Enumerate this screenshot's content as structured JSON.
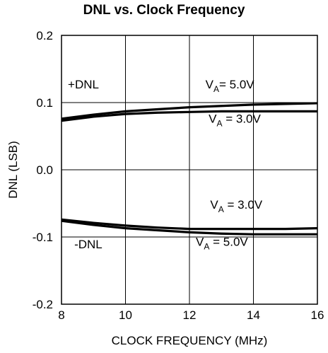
{
  "chart_data": {
    "type": "line",
    "title": "DNL vs. Clock Frequency",
    "xlabel": "CLOCK FREQUENCY (MHz)",
    "ylabel": "DNL (LSB)",
    "xlim": [
      8,
      16
    ],
    "ylim": [
      -0.2,
      0.2
    ],
    "x_ticks": [
      8,
      10,
      12,
      14,
      16
    ],
    "x_tick_labels": [
      "8",
      "10",
      "12",
      "14",
      "16"
    ],
    "y_ticks": [
      0.2,
      0.1,
      0.0,
      -0.1,
      -0.2
    ],
    "y_tick_labels": [
      "0.2",
      "0.1",
      "0.0",
      "-0.1",
      "-0.2"
    ],
    "grid": true,
    "series": [
      {
        "x": [
          8,
          9,
          10,
          11,
          12,
          13,
          14,
          15,
          16
        ],
        "y": [
          0.076,
          0.082,
          0.087,
          0.09,
          0.093,
          0.095,
          0.097,
          0.098,
          0.099
        ]
      },
      {
        "x": [
          8,
          9,
          10,
          11,
          12,
          13,
          14,
          15,
          16
        ],
        "y": [
          0.073,
          0.079,
          0.083,
          0.085,
          0.086,
          0.087,
          0.087,
          0.087,
          0.087
        ]
      },
      {
        "x": [
          8,
          9,
          10,
          11,
          12,
          13,
          14,
          15,
          16
        ],
        "y": [
          -0.074,
          -0.079,
          -0.083,
          -0.086,
          -0.088,
          -0.088,
          -0.088,
          -0.088,
          -0.087
        ]
      },
      {
        "x": [
          8,
          9,
          10,
          11,
          12,
          13,
          14,
          15,
          16
        ],
        "y": [
          -0.076,
          -0.082,
          -0.087,
          -0.09,
          -0.093,
          -0.095,
          -0.096,
          -0.096,
          -0.096
        ]
      }
    ],
    "annotations": [
      {
        "text": "+DNL",
        "x": 8.2,
        "y": 0.121,
        "anchor": "start"
      },
      {
        "text": "V",
        "sub": "A",
        "rest": "= 5.0V",
        "x": 12.5,
        "y": 0.121,
        "anchor": "start"
      },
      {
        "text": "V",
        "sub": "A",
        "rest": " = 3.0V",
        "x": 12.6,
        "y": 0.07,
        "anchor": "start"
      },
      {
        "text": "V",
        "sub": "A",
        "rest": " = 3.0V",
        "x": 12.65,
        "y": -0.058,
        "anchor": "start"
      },
      {
        "text": "-DNL",
        "x": 8.4,
        "y": -0.117,
        "anchor": "start"
      },
      {
        "text": "V",
        "sub": "A",
        "rest": " = 5.0V",
        "x": 12.2,
        "y": -0.113,
        "anchor": "start"
      }
    ]
  }
}
